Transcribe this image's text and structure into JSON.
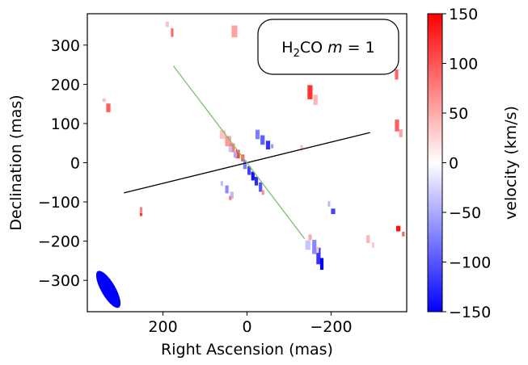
{
  "chart_data": {
    "type": "heatmap",
    "title": "",
    "annotation": {
      "prefix": "H",
      "sub": "2",
      "rest": "CO ",
      "var": "m",
      "eq": " = 1"
    },
    "xlabel": "Right Ascension (mas)",
    "ylabel": "Declination (mas)",
    "xlim": [
      380,
      -380
    ],
    "ylim": [
      -380,
      380
    ],
    "xticks": [
      200,
      0,
      -200
    ],
    "xtick_labels": [
      "200",
      "0",
      "−200"
    ],
    "yticks": [
      300,
      200,
      100,
      0,
      -100,
      -200,
      -300
    ],
    "ytick_labels": [
      "300",
      "200",
      "100",
      "0",
      "−100",
      "−200",
      "−300"
    ],
    "colorbar": {
      "label": "velocity (km/s)",
      "range": [
        -150,
        150
      ],
      "ticks": [
        150,
        100,
        50,
        0,
        -50,
        -100,
        -150
      ],
      "tick_labels": [
        "150",
        "100",
        "50",
        "0",
        "−50",
        "−100",
        "−150"
      ],
      "colormap": "bwr"
    },
    "lines": [
      {
        "name": "disk-axis-line",
        "color": "#000000",
        "points": [
          [
            293,
            -77
          ],
          [
            -293,
            77
          ]
        ]
      },
      {
        "name": "jet-axis-line",
        "color": "#7fbf6f",
        "points": [
          [
            175,
            247
          ],
          [
            -137,
            -194
          ]
        ]
      }
    ],
    "beam": {
      "x": 330,
      "y": -323,
      "major": 107,
      "minor": 34,
      "pa": 30,
      "color": "#0000ff"
    },
    "clumps": [
      {
        "x": 190,
        "y": 353,
        "w": 8,
        "h": 14,
        "v": 35
      },
      {
        "x": 178,
        "y": 332,
        "w": 6,
        "h": 22,
        "v": 90
      },
      {
        "x": 30,
        "y": 335,
        "w": 14,
        "h": 30,
        "v": 55
      },
      {
        "x": 340,
        "y": 160,
        "w": 8,
        "h": 8,
        "v": 40
      },
      {
        "x": 330,
        "y": 140,
        "w": 10,
        "h": 22,
        "v": 95
      },
      {
        "x": -150,
        "y": 180,
        "w": 12,
        "h": 36,
        "v": 120
      },
      {
        "x": -163,
        "y": 160,
        "w": 10,
        "h": 26,
        "v": 45
      },
      {
        "x": -356,
        "y": 225,
        "w": 8,
        "h": 26,
        "v": 90
      },
      {
        "x": -357,
        "y": 95,
        "w": 10,
        "h": 30,
        "v": 95
      },
      {
        "x": -366,
        "y": 75,
        "w": 8,
        "h": 20,
        "v": 55
      },
      {
        "x": 58,
        "y": 72,
        "w": 14,
        "h": 22,
        "v": 35
      },
      {
        "x": 45,
        "y": 55,
        "w": 14,
        "h": 26,
        "v": 60
      },
      {
        "x": 35,
        "y": 38,
        "w": 12,
        "h": 22,
        "v": 80
      },
      {
        "x": 22,
        "y": 22,
        "w": 10,
        "h": 22,
        "v": 110
      },
      {
        "x": 10,
        "y": 12,
        "w": 8,
        "h": 18,
        "v": 95
      },
      {
        "x": 40,
        "y": 35,
        "w": 8,
        "h": 14,
        "v": -35
      },
      {
        "x": 28,
        "y": 20,
        "w": 8,
        "h": 14,
        "v": -50
      },
      {
        "x": -25,
        "y": 72,
        "w": 10,
        "h": 24,
        "v": -75
      },
      {
        "x": -37,
        "y": 58,
        "w": 10,
        "h": 24,
        "v": -95
      },
      {
        "x": -50,
        "y": 45,
        "w": 10,
        "h": 22,
        "v": -120
      },
      {
        "x": -60,
        "y": 42,
        "w": 6,
        "h": 10,
        "v": -60
      },
      {
        "x": 5,
        "y": -5,
        "w": 8,
        "h": 22,
        "v": -75
      },
      {
        "x": -5,
        "y": -20,
        "w": 8,
        "h": 22,
        "v": -110
      },
      {
        "x": -14,
        "y": -34,
        "w": 8,
        "h": 22,
        "v": -140
      },
      {
        "x": -22,
        "y": -47,
        "w": 8,
        "h": 22,
        "v": -125
      },
      {
        "x": -32,
        "y": -62,
        "w": 8,
        "h": 24,
        "v": -100
      },
      {
        "x": -38,
        "y": -76,
        "w": 6,
        "h": 12,
        "v": 70
      },
      {
        "x": 60,
        "y": -53,
        "w": 6,
        "h": 12,
        "v": -40
      },
      {
        "x": 48,
        "y": -68,
        "w": 8,
        "h": 20,
        "v": -70
      },
      {
        "x": 36,
        "y": -83,
        "w": 8,
        "h": 18,
        "v": -40
      },
      {
        "x": 40,
        "y": -90,
        "w": 6,
        "h": 10,
        "v": 80
      },
      {
        "x": 252,
        "y": -120,
        "w": 6,
        "h": 14,
        "v": 75
      },
      {
        "x": 252,
        "y": -132,
        "w": 6,
        "h": 8,
        "v": 120
      },
      {
        "x": -195,
        "y": -105,
        "w": 6,
        "h": 14,
        "v": -40
      },
      {
        "x": -205,
        "y": -124,
        "w": 10,
        "h": 14,
        "v": -110
      },
      {
        "x": -130,
        "y": 40,
        "w": 6,
        "h": 10,
        "v": 40
      },
      {
        "x": -150,
        "y": -190,
        "w": 8,
        "h": 14,
        "v": 50
      },
      {
        "x": -145,
        "y": -210,
        "w": 12,
        "h": 24,
        "v": -35
      },
      {
        "x": -160,
        "y": -215,
        "w": 10,
        "h": 36,
        "v": -70
      },
      {
        "x": -170,
        "y": -238,
        "w": 10,
        "h": 42,
        "v": -120
      },
      {
        "x": -178,
        "y": -258,
        "w": 8,
        "h": 30,
        "v": -150
      },
      {
        "x": -168,
        "y": -222,
        "w": 6,
        "h": 16,
        "v": 35
      },
      {
        "x": -288,
        "y": -195,
        "w": 8,
        "h": 20,
        "v": 45
      },
      {
        "x": -300,
        "y": -210,
        "w": 6,
        "h": 14,
        "v": 30
      },
      {
        "x": -360,
        "y": -168,
        "w": 10,
        "h": 14,
        "v": 140
      },
      {
        "x": -372,
        "y": -182,
        "w": 6,
        "h": 12,
        "v": 95
      }
    ]
  }
}
